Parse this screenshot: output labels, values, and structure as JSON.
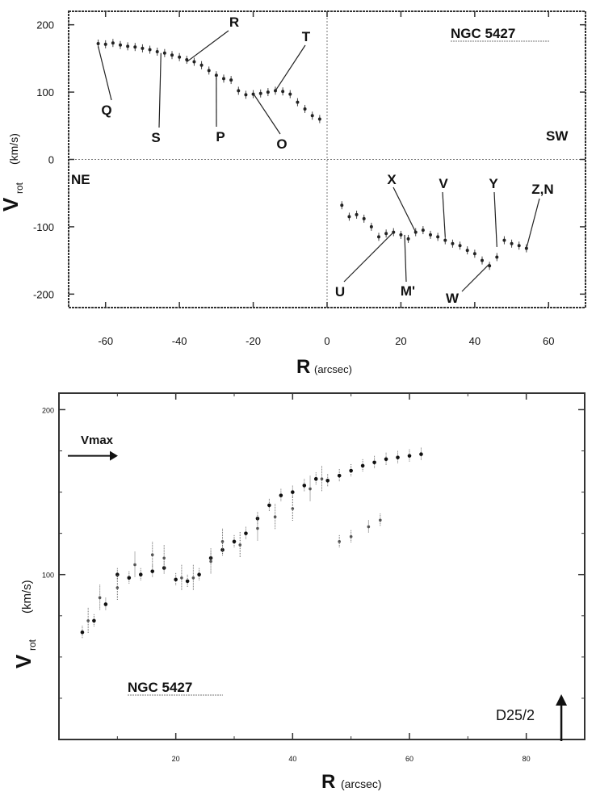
{
  "chart_data": [
    {
      "type": "scatter",
      "title": "NGC 5427",
      "xlabel_main": "R",
      "xlabel_unit": "(arcsec)",
      "ylabel_main": "V",
      "ylabel_sub": "rot",
      "ylabel_unit": "(km/s)",
      "xlim": [
        -70,
        70
      ],
      "ylim": [
        -220,
        220
      ],
      "xticks": [
        -60,
        -40,
        -20,
        0,
        20,
        40,
        60
      ],
      "yticks": [
        -200,
        -100,
        0,
        100,
        200
      ],
      "xtick_labels": [
        "-60",
        "-40",
        "-20",
        "0",
        "20",
        "40",
        "60"
      ],
      "ytick_labels": [
        "-200",
        "-100",
        "0",
        "100",
        "200"
      ],
      "side_labels": {
        "ne": "NE",
        "sw": "SW"
      },
      "series": [
        {
          "x": [
            -62,
            -60,
            -58,
            -56,
            -54,
            -52,
            -50,
            -48,
            -46,
            -44,
            -42,
            -40,
            -38,
            -36,
            -34,
            -32,
            -30,
            -28,
            -26,
            -24,
            -22,
            -20,
            -18,
            -16,
            -14,
            -12,
            -10,
            -8,
            -6,
            -4,
            -2
          ],
          "y": [
            172,
            171,
            173,
            170,
            168,
            167,
            165,
            163,
            160,
            158,
            155,
            152,
            148,
            145,
            140,
            132,
            125,
            120,
            118,
            102,
            96,
            97,
            98,
            100,
            102,
            101,
            97,
            85,
            75,
            65,
            60
          ]
        },
        {
          "x": [
            4,
            6,
            8,
            10,
            12,
            14,
            16,
            18,
            20,
            22,
            24,
            26,
            28,
            30,
            32,
            34,
            36,
            38,
            40,
            42,
            44,
            46,
            48,
            50,
            52,
            54
          ],
          "y": [
            -68,
            -85,
            -82,
            -88,
            -100,
            -115,
            -110,
            -108,
            -112,
            -118,
            -108,
            -105,
            -112,
            -115,
            -120,
            -125,
            -128,
            -135,
            -140,
            -150,
            -158,
            -145,
            -120,
            -125,
            -128,
            -132
          ]
        }
      ],
      "annotations": [
        {
          "text": "Q",
          "x": -62,
          "y": 168
        },
        {
          "text": "R",
          "x": -38,
          "y": 145
        },
        {
          "text": "S",
          "x": -45,
          "y": 158
        },
        {
          "text": "P",
          "x": -30,
          "y": 122
        },
        {
          "text": "T",
          "x": -14,
          "y": 102
        },
        {
          "text": "O",
          "x": -20,
          "y": 98
        },
        {
          "text": "X",
          "x": 24,
          "y": -108
        },
        {
          "text": "V",
          "x": 32,
          "y": -115
        },
        {
          "text": "Y",
          "x": 46,
          "y": -130
        },
        {
          "text": "Z,N",
          "x": 54,
          "y": -132
        },
        {
          "text": "U",
          "x": 18,
          "y": -108
        },
        {
          "text": "M'",
          "x": 21,
          "y": -112
        },
        {
          "text": "W",
          "x": 44,
          "y": -155
        }
      ]
    },
    {
      "type": "scatter",
      "title": "NGC 5427",
      "xlabel_main": "R",
      "xlabel_unit": "(arcsec)",
      "ylabel_main": "V",
      "ylabel_sub": "rot",
      "ylabel_unit": "(km/s)",
      "xlim": [
        0,
        90
      ],
      "ylim": [
        0,
        210
      ],
      "xticks": [
        20,
        40,
        60,
        80
      ],
      "yticks": [
        100,
        200
      ],
      "xtick_labels": [
        "20",
        "40",
        "60",
        "80"
      ],
      "ytick_labels": [
        "100",
        "200"
      ],
      "annotations_text": {
        "vmax": "Vmax",
        "d25": "D25/2"
      },
      "vmax_value": 172,
      "d25_value": 86,
      "series": [
        {
          "x": [
            4,
            6,
            8,
            10,
            12,
            14,
            16,
            18,
            20,
            22,
            24,
            26,
            28,
            30,
            32,
            34,
            36,
            38,
            40,
            42,
            44,
            46,
            48,
            50,
            52,
            54,
            56,
            58,
            60,
            62
          ],
          "y": [
            65,
            72,
            82,
            100,
            98,
            100,
            102,
            104,
            97,
            96,
            100,
            110,
            115,
            120,
            125,
            134,
            142,
            148,
            150,
            154,
            158,
            157,
            160,
            163,
            166,
            168,
            170,
            171,
            172,
            173
          ]
        },
        {
          "x": [
            5,
            7,
            10,
            13,
            16,
            18,
            21,
            23,
            26,
            28,
            31,
            34,
            37,
            40,
            43,
            45
          ],
          "y": [
            72,
            86,
            92,
            106,
            112,
            110,
            98,
            98,
            108,
            120,
            118,
            128,
            135,
            140,
            152,
            158
          ]
        },
        {
          "x": [
            48,
            50,
            53,
            55
          ],
          "y": [
            120,
            123,
            129,
            133
          ]
        }
      ]
    }
  ]
}
